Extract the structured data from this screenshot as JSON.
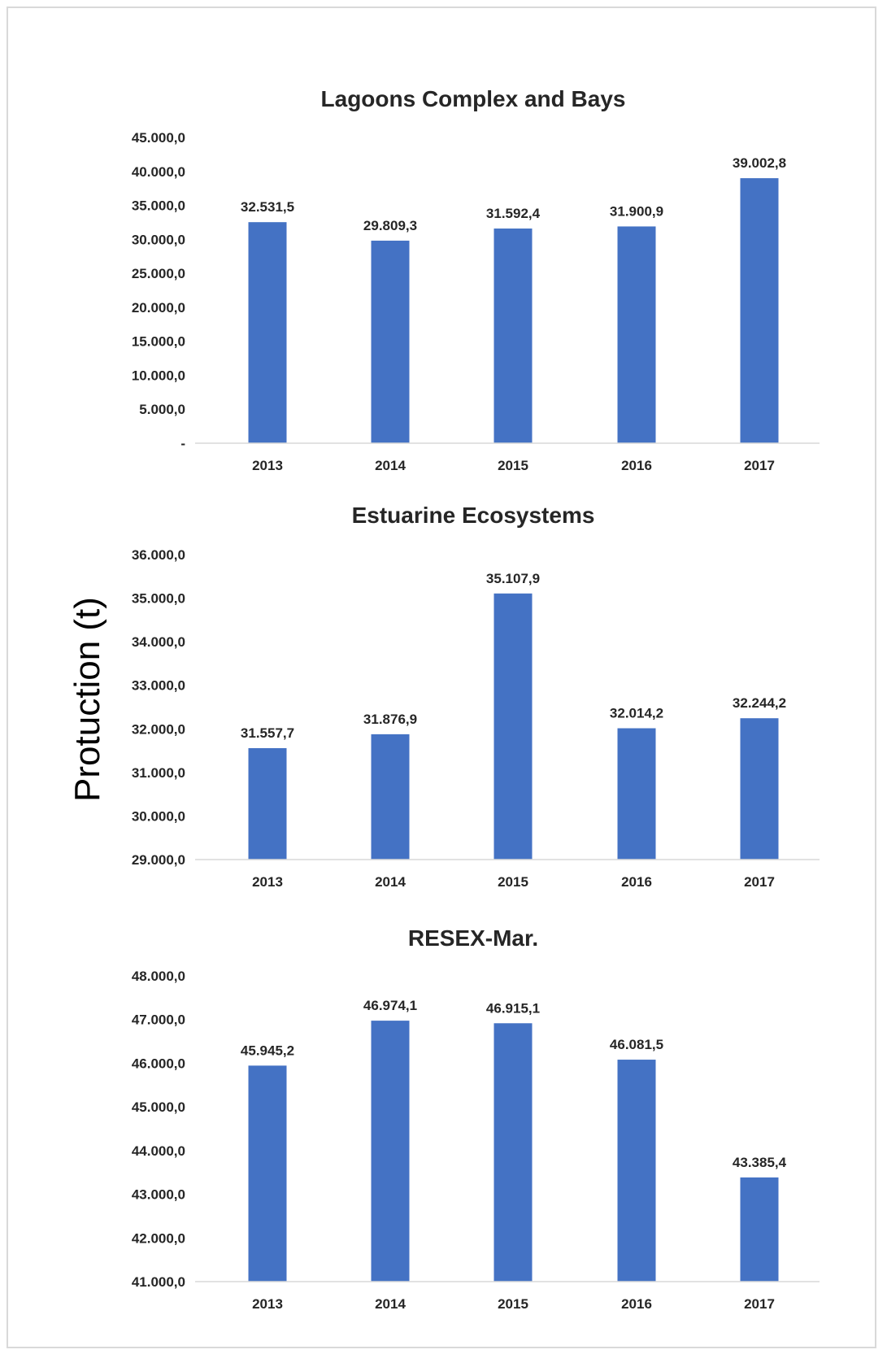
{
  "shared": {
    "ylabel": "Protuction (t)",
    "bar_color": "#4472C4",
    "axis_color": "#d9d9d9",
    "text_color": "#262626"
  },
  "chart_data": [
    {
      "type": "bar",
      "title": "Lagoons Complex and Bays",
      "xlabel": "",
      "ylabel": "Protuction (t)",
      "categories": [
        "2013",
        "2014",
        "2015",
        "2016",
        "2017"
      ],
      "values": [
        32531.5,
        29809.3,
        31592.4,
        31900.9,
        39002.8
      ],
      "data_labels": [
        "32.531,5",
        "29.809,3",
        "31.592,4",
        "31.900,9",
        "39.002,8"
      ],
      "ylim": [
        0,
        45000
      ],
      "yticks": [
        0,
        5000,
        10000,
        15000,
        20000,
        25000,
        30000,
        35000,
        40000,
        45000
      ],
      "ytick_labels": [
        "-",
        "5.000,0",
        "10.000,0",
        "15.000,0",
        "20.000,0",
        "25.000,0",
        "30.000,0",
        "35.000,0",
        "40.000,0",
        "45.000,0"
      ],
      "grid": false,
      "legend": "none"
    },
    {
      "type": "bar",
      "title": "Estuarine Ecosystems",
      "xlabel": "",
      "ylabel": "Protuction (t)",
      "categories": [
        "2013",
        "2014",
        "2015",
        "2016",
        "2017"
      ],
      "values": [
        31557.7,
        31876.9,
        35107.9,
        32014.2,
        32244.2
      ],
      "data_labels": [
        "31.557,7",
        "31.876,9",
        "35.107,9",
        "32.014,2",
        "32.244,2"
      ],
      "ylim": [
        29000,
        36000
      ],
      "yticks": [
        29000,
        30000,
        31000,
        32000,
        33000,
        34000,
        35000,
        36000
      ],
      "ytick_labels": [
        "29.000,0",
        "30.000,0",
        "31.000,0",
        "32.000,0",
        "33.000,0",
        "34.000,0",
        "35.000,0",
        "36.000,0"
      ],
      "grid": false,
      "legend": "none"
    },
    {
      "type": "bar",
      "title": "RESEX-Mar.",
      "xlabel": "",
      "ylabel": "Protuction (t)",
      "categories": [
        "2013",
        "2014",
        "2015",
        "2016",
        "2017"
      ],
      "values": [
        45945.2,
        46974.1,
        46915.1,
        46081.5,
        43385.4
      ],
      "data_labels": [
        "45.945,2",
        "46.974,1",
        "46.915,1",
        "46.081,5",
        "43.385,4"
      ],
      "ylim": [
        41000,
        48000
      ],
      "yticks": [
        41000,
        42000,
        43000,
        44000,
        45000,
        46000,
        47000,
        48000
      ],
      "ytick_labels": [
        "41.000,0",
        "42.000,0",
        "43.000,0",
        "44.000,0",
        "45.000,0",
        "46.000,0",
        "47.000,0",
        "48.000,0"
      ],
      "grid": false,
      "legend": "none"
    }
  ]
}
